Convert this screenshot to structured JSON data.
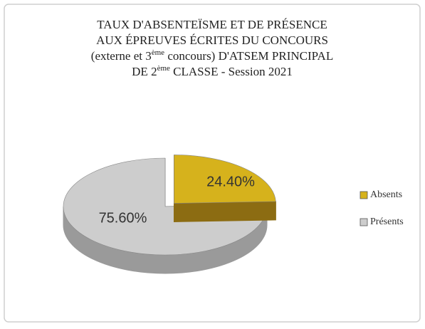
{
  "chart_data": {
    "type": "pie",
    "title_lines": [
      [
        "TAUX D'ABSENTEÏSME ET DE PRÉSENCE"
      ],
      [
        "AUX ÉPREUVES ÉCRITES DU CONCOURS"
      ],
      [
        "(externe et 3",
        "ème",
        " concours) D'ATSEM PRINCIPAL"
      ],
      [
        "DE 2",
        "ème",
        " CLASSE - Session 2021"
      ]
    ],
    "categories": [
      "Absents",
      "Présents"
    ],
    "values": [
      24.4,
      75.6
    ],
    "value_labels": [
      "24.40%",
      "75.60%"
    ],
    "colors": [
      "#d6b21c",
      "#cdcdcd"
    ],
    "side_colors": [
      "#8c6c12",
      "#9a9a9a"
    ],
    "legend": "right"
  }
}
